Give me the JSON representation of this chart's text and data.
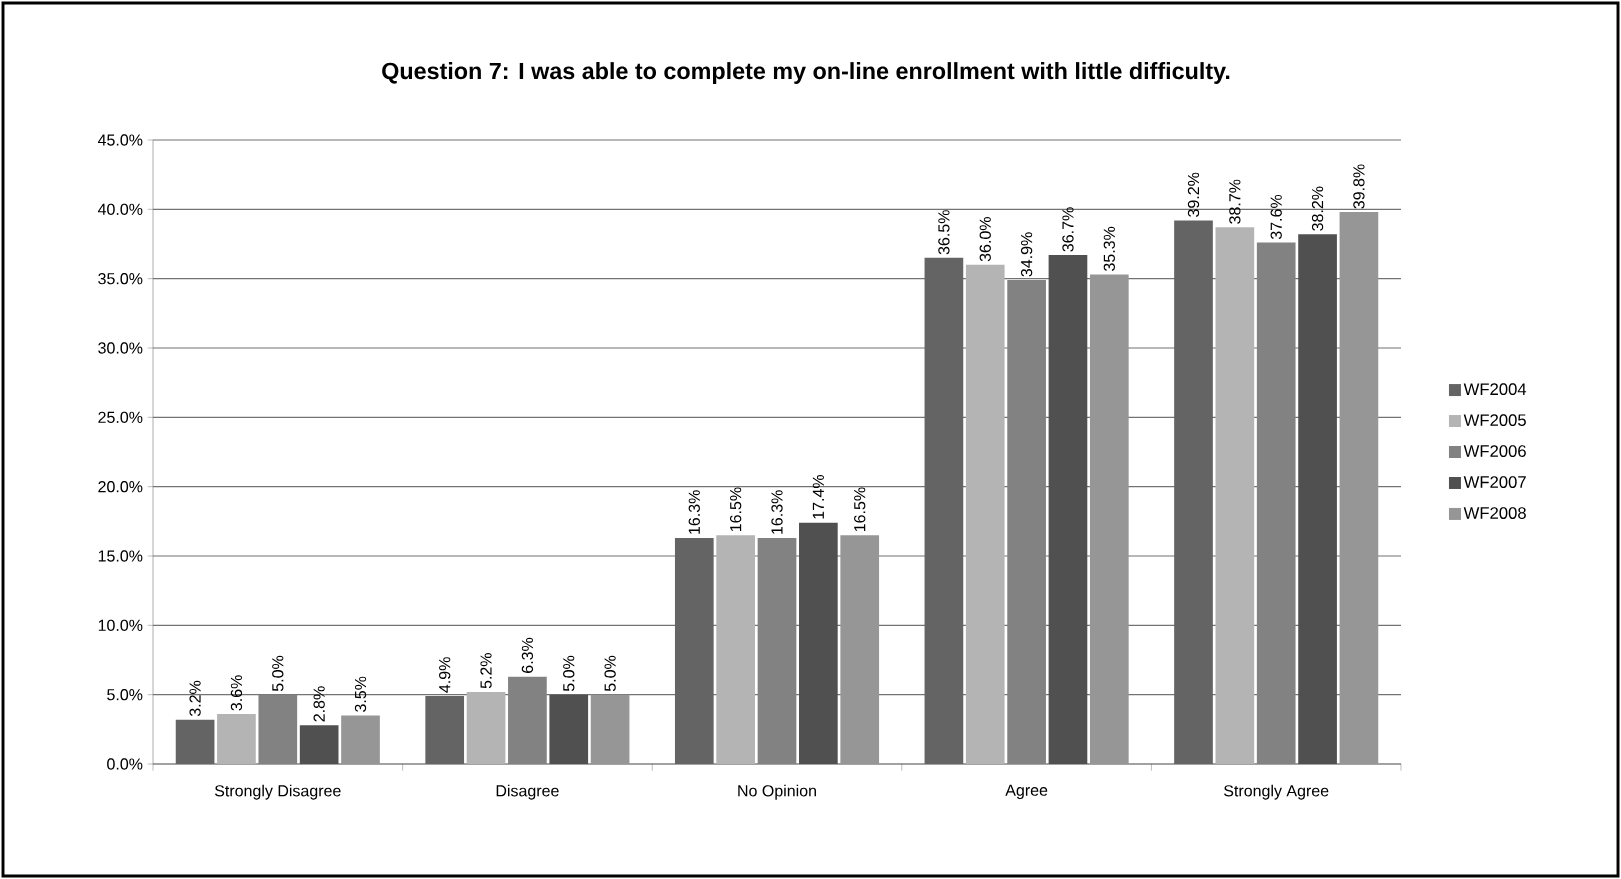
{
  "chart_data": {
    "type": "bar",
    "title": "Question 7:  I was able to complete my on-line enrollment with little difficulty.",
    "categories": [
      "Strongly Disagree",
      "Disagree",
      "No Opinion",
      "Agree",
      "Strongly Agree"
    ],
    "series": [
      {
        "name": "WF2004",
        "color": "#646464",
        "values": [
          3.2,
          4.9,
          16.3,
          36.5,
          39.2
        ],
        "value_labels": [
          "3.2%",
          "4.9%",
          "16.3%",
          "36.5%",
          "39.2%"
        ]
      },
      {
        "name": "WF2005",
        "color": "#b4b4b4",
        "values": [
          3.6,
          5.2,
          16.5,
          36.0,
          38.7
        ],
        "value_labels": [
          "3.6%",
          "5.2%",
          "16.5%",
          "36.0%",
          "38.7%"
        ]
      },
      {
        "name": "WF2006",
        "color": "#828282",
        "values": [
          5.0,
          6.3,
          16.3,
          34.9,
          37.6
        ],
        "value_labels": [
          "5.0%",
          "6.3%",
          "16.3%",
          "34.9%",
          "37.6%"
        ]
      },
      {
        "name": "WF2007",
        "color": "#505050",
        "values": [
          2.8,
          5.0,
          17.4,
          36.7,
          38.2
        ],
        "value_labels": [
          "2.8%",
          "5.0%",
          "17.4%",
          "36.7%",
          "38.2%"
        ]
      },
      {
        "name": "WF2008",
        "color": "#969696",
        "values": [
          3.5,
          5.0,
          16.5,
          35.3,
          39.8
        ],
        "value_labels": [
          "3.5%",
          "5.0%",
          "16.5%",
          "35.3%",
          "39.8%"
        ]
      }
    ],
    "ylim": [
      0,
      45
    ],
    "yticks": [
      {
        "value": 0,
        "label": "0.0%"
      },
      {
        "value": 5,
        "label": "5.0%"
      },
      {
        "value": 10,
        "label": "10.0%"
      },
      {
        "value": 15,
        "label": "15.0%"
      },
      {
        "value": 20,
        "label": "20.0%"
      },
      {
        "value": 25,
        "label": "25.0%"
      },
      {
        "value": 30,
        "label": "30.0%"
      },
      {
        "value": 35,
        "label": "35.0%"
      },
      {
        "value": 40,
        "label": "40.0%"
      },
      {
        "value": 45,
        "label": "45.0%"
      }
    ],
    "grid": "y",
    "legend": "right"
  }
}
